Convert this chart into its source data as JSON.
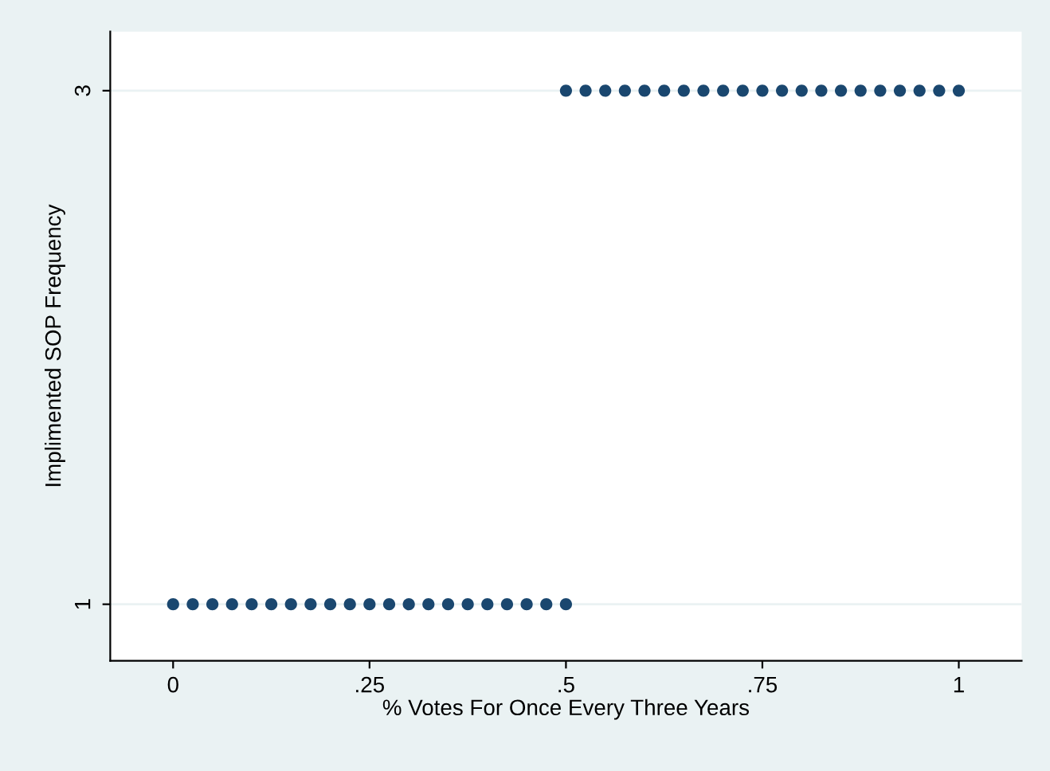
{
  "chart_data": {
    "type": "scatter",
    "xlabel": "% Votes For Once Every Three Years",
    "ylabel": "Implimented SOP Frequency",
    "series": [
      {
        "color": "#1a476f",
        "x": [
          0,
          0.025,
          0.05,
          0.075,
          0.1,
          0.125,
          0.15,
          0.175,
          0.2,
          0.225,
          0.25,
          0.275,
          0.3,
          0.325,
          0.35,
          0.375,
          0.4,
          0.425,
          0.45,
          0.475,
          0.5
        ],
        "values": [
          1,
          1,
          1,
          1,
          1,
          1,
          1,
          1,
          1,
          1,
          1,
          1,
          1,
          1,
          1,
          1,
          1,
          1,
          1,
          1,
          1
        ]
      },
      {
        "color": "#1a476f",
        "x": [
          0.5,
          0.525,
          0.55,
          0.575,
          0.6,
          0.625,
          0.65,
          0.675,
          0.7,
          0.725,
          0.75,
          0.775,
          0.8,
          0.825,
          0.85,
          0.875,
          0.9,
          0.925,
          0.95,
          0.975,
          1
        ],
        "values": [
          3,
          3,
          3,
          3,
          3,
          3,
          3,
          3,
          3,
          3,
          3,
          3,
          3,
          3,
          3,
          3,
          3,
          3,
          3,
          3,
          3
        ]
      }
    ],
    "xlim": [
      -0.08,
      1.08
    ],
    "ylim": [
      0.78,
      3.23
    ],
    "xticks": [
      0,
      {
        "value": 0.25,
        "label": ".25"
      },
      {
        "value": 0.5,
        "label": ".5"
      },
      {
        "value": 0.75,
        "label": ".75"
      },
      1
    ],
    "yticks": [
      1,
      3
    ],
    "grid": "y",
    "marker": "circle",
    "legend": false
  }
}
